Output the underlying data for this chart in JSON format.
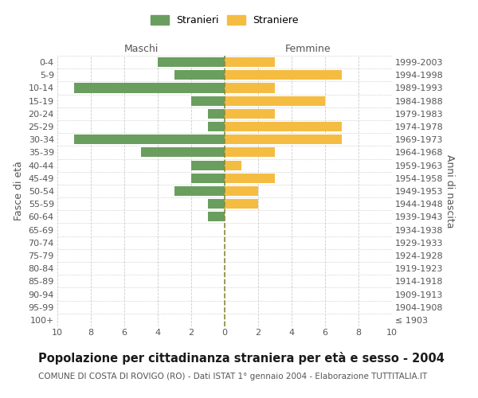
{
  "age_groups": [
    "100+",
    "95-99",
    "90-94",
    "85-89",
    "80-84",
    "75-79",
    "70-74",
    "65-69",
    "60-64",
    "55-59",
    "50-54",
    "45-49",
    "40-44",
    "35-39",
    "30-34",
    "25-29",
    "20-24",
    "15-19",
    "10-14",
    "5-9",
    "0-4"
  ],
  "birth_years": [
    "≤ 1903",
    "1904-1908",
    "1909-1913",
    "1914-1918",
    "1919-1923",
    "1924-1928",
    "1929-1933",
    "1934-1938",
    "1939-1943",
    "1944-1948",
    "1949-1953",
    "1954-1958",
    "1959-1963",
    "1964-1968",
    "1969-1973",
    "1974-1978",
    "1979-1983",
    "1984-1988",
    "1989-1993",
    "1994-1998",
    "1999-2003"
  ],
  "males": [
    0,
    0,
    0,
    0,
    0,
    0,
    0,
    0,
    1,
    1,
    3,
    2,
    2,
    5,
    9,
    1,
    1,
    2,
    9,
    3,
    4
  ],
  "females": [
    0,
    0,
    0,
    0,
    0,
    0,
    0,
    0,
    0,
    2,
    2,
    3,
    1,
    3,
    7,
    7,
    3,
    6,
    3,
    7,
    3
  ],
  "male_color": "#6a9e5e",
  "female_color": "#f5bc42",
  "background_color": "#ffffff",
  "grid_color": "#cccccc",
  "title": "Popolazione per cittadinanza straniera per età e sesso - 2004",
  "subtitle": "COMUNE DI COSTA DI ROVIGO (RO) - Dati ISTAT 1° gennaio 2004 - Elaborazione TUTTITALIA.IT",
  "xlabel_left": "Maschi",
  "xlabel_right": "Femmine",
  "ylabel_left": "Fasce di età",
  "ylabel_right": "Anni di nascita",
  "legend_male": "Stranieri",
  "legend_female": "Straniere",
  "xlim": 10,
  "dashed_line_color": "#8b8b3a",
  "title_fontsize": 10.5,
  "subtitle_fontsize": 7.5,
  "axis_label_fontsize": 9,
  "tick_fontsize": 8,
  "header_label_fontsize": 9
}
